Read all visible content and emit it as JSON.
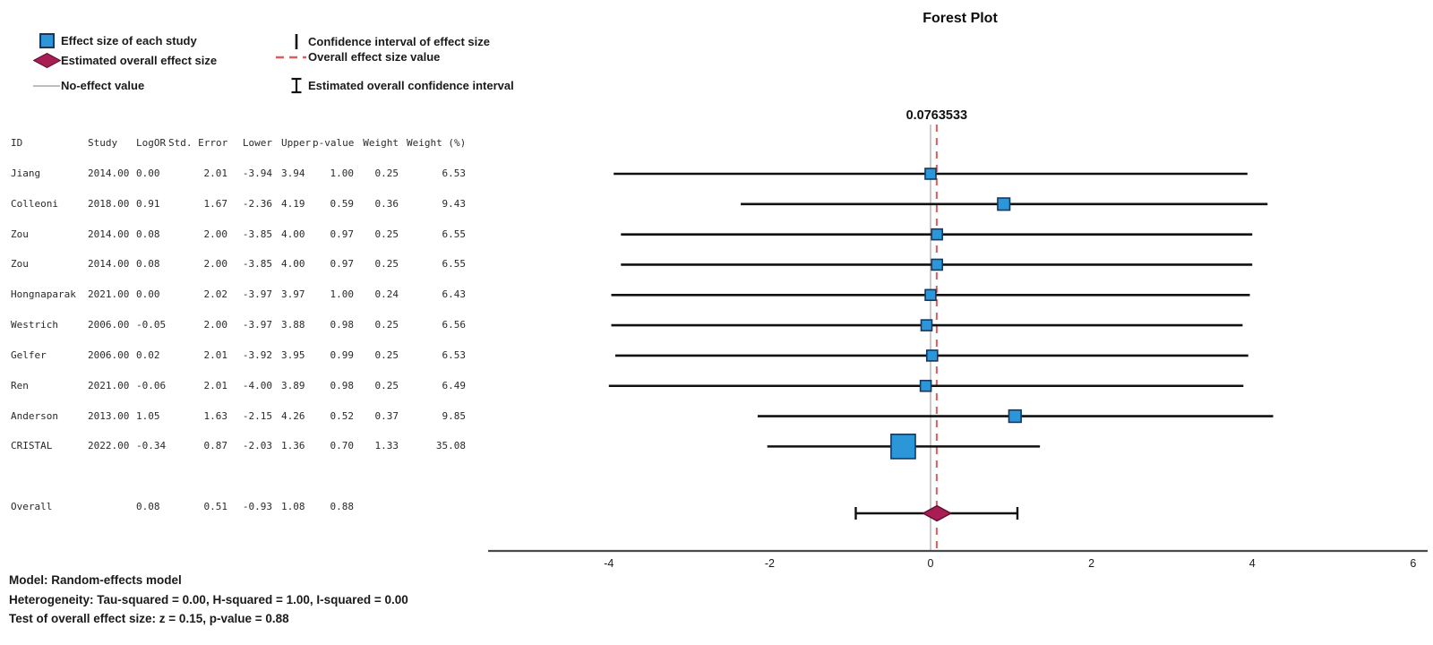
{
  "title": "Forest Plot",
  "legend": {
    "items_left": [
      {
        "icon": "study-effect-square-icon",
        "label": "Effect size of each study"
      },
      {
        "icon": "overall-effect-diamond-icon",
        "label": "Estimated overall effect size"
      },
      {
        "icon": "no-effect-line-icon",
        "label": "No-effect value"
      }
    ],
    "items_right": [
      {
        "icon": "ci-bar-icon",
        "label": "Confidence interval of effect size"
      },
      {
        "icon": "overall-effect-dashed-line-icon",
        "label": "Overall effect size value"
      },
      {
        "icon": "overall-ci-ibeam-icon",
        "label": "Estimated overall confidence interval"
      }
    ]
  },
  "table": {
    "columns": [
      "ID",
      "Study",
      "LogOR",
      "Std. Error",
      "Lower",
      "Upper",
      "p-value",
      "Weight",
      "Weight (%)"
    ],
    "rows": [
      [
        "Jiang",
        "2014.00",
        "0.00",
        "2.01",
        "-3.94",
        "3.94",
        "1.00",
        "0.25",
        "6.53"
      ],
      [
        "Colleoni",
        "2018.00",
        "0.91",
        "1.67",
        "-2.36",
        "4.19",
        "0.59",
        "0.36",
        "9.43"
      ],
      [
        "Zou",
        "2014.00",
        "0.08",
        "2.00",
        "-3.85",
        "4.00",
        "0.97",
        "0.25",
        "6.55"
      ],
      [
        "Zou",
        "2014.00",
        "0.08",
        "2.00",
        "-3.85",
        "4.00",
        "0.97",
        "0.25",
        "6.55"
      ],
      [
        "Hongnaparak",
        "2021.00",
        "0.00",
        "2.02",
        "-3.97",
        "3.97",
        "1.00",
        "0.24",
        "6.43"
      ],
      [
        "Westrich",
        "2006.00",
        "-0.05",
        "2.00",
        "-3.97",
        "3.88",
        "0.98",
        "0.25",
        "6.56"
      ],
      [
        "Gelfer",
        "2006.00",
        "0.02",
        "2.01",
        "-3.92",
        "3.95",
        "0.99",
        "0.25",
        "6.53"
      ],
      [
        "Ren",
        "2021.00",
        "-0.06",
        "2.01",
        "-4.00",
        "3.89",
        "0.98",
        "0.25",
        "6.49"
      ],
      [
        "Anderson",
        "2013.00",
        "1.05",
        "1.63",
        "-2.15",
        "4.26",
        "0.52",
        "0.37",
        "9.85"
      ],
      [
        "CRISTAL",
        "2022.00",
        "-0.34",
        "0.87",
        "-2.03",
        "1.36",
        "0.70",
        "1.33",
        "35.08"
      ]
    ],
    "overall_row": [
      "Overall",
      "",
      "0.08",
      "0.51",
      "-0.93",
      "1.08",
      "0.88",
      "",
      ""
    ]
  },
  "chart_data": {
    "type": "forest",
    "title": "Forest Plot",
    "xlabel": "",
    "ylabel": "",
    "x_ticks": [
      -4,
      -2,
      0,
      2,
      4,
      6
    ],
    "xlim": [
      -5.5,
      6.2
    ],
    "grid": false,
    "no_effect_value": 0,
    "overall_effect_value": 0.0763533,
    "overall_effect_label": "0.0763533",
    "studies": [
      {
        "id": "Jiang",
        "effect": 0.0,
        "lower": -3.94,
        "upper": 3.94,
        "weight": 0.25
      },
      {
        "id": "Colleoni",
        "effect": 0.91,
        "lower": -2.36,
        "upper": 4.19,
        "weight": 0.36
      },
      {
        "id": "Zou",
        "effect": 0.08,
        "lower": -3.85,
        "upper": 4.0,
        "weight": 0.25
      },
      {
        "id": "Zou",
        "effect": 0.08,
        "lower": -3.85,
        "upper": 4.0,
        "weight": 0.25
      },
      {
        "id": "Hongnaparak",
        "effect": 0.0,
        "lower": -3.97,
        "upper": 3.97,
        "weight": 0.24
      },
      {
        "id": "Westrich",
        "effect": -0.05,
        "lower": -3.97,
        "upper": 3.88,
        "weight": 0.25
      },
      {
        "id": "Gelfer",
        "effect": 0.02,
        "lower": -3.92,
        "upper": 3.95,
        "weight": 0.25
      },
      {
        "id": "Ren",
        "effect": -0.06,
        "lower": -4.0,
        "upper": 3.89,
        "weight": 0.25
      },
      {
        "id": "Anderson",
        "effect": 1.05,
        "lower": -2.15,
        "upper": 4.26,
        "weight": 0.37
      },
      {
        "id": "CRISTAL",
        "effect": -0.34,
        "lower": -2.03,
        "upper": 1.36,
        "weight": 1.33
      }
    ],
    "overall": {
      "id": "Overall",
      "effect": 0.08,
      "lower": -0.93,
      "upper": 1.08
    }
  },
  "annotations": {
    "model": "Model: Random-effects model",
    "heterogeneity": "Heterogeneity: Tau-squared = 0.00, H-squared = 1.00, I-squared = 0.00",
    "test": "Test of overall effect size: z = 0.15, p-value = 0.88"
  },
  "colors": {
    "square_fill": "#2b97d8",
    "square_border": "#17375e",
    "diamond_fill": "#a81e52",
    "diamond_border": "#5f0e30",
    "overall_line_red": "#e05b5b",
    "no_effect_gray": "#bdbdbd",
    "ci_black": "#111111",
    "axis_gray": "#4a4a4a"
  }
}
